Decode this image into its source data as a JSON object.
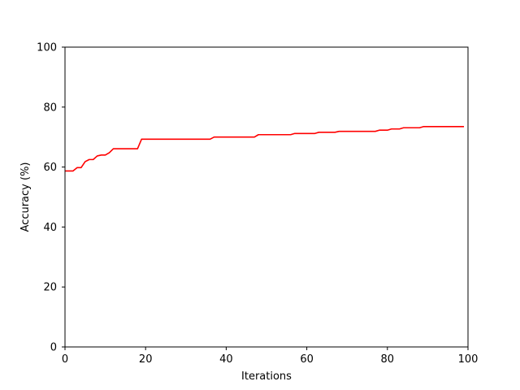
{
  "chart_data": {
    "type": "line",
    "title": "",
    "xlabel": "Iterations",
    "ylabel": "Accuracy (%)",
    "xlim": [
      0,
      100
    ],
    "ylim": [
      0,
      100
    ],
    "xticks": [
      0,
      20,
      40,
      60,
      80,
      100
    ],
    "yticks": [
      0,
      20,
      40,
      60,
      80,
      100
    ],
    "grid": false,
    "series": [
      {
        "color": "#ff0000",
        "x": [
          0,
          1,
          2,
          3,
          4,
          5,
          6,
          7,
          8,
          9,
          10,
          11,
          12,
          13,
          14,
          15,
          16,
          17,
          18,
          19,
          20,
          21,
          22,
          23,
          24,
          25,
          26,
          27,
          28,
          29,
          30,
          31,
          32,
          33,
          34,
          35,
          36,
          37,
          38,
          39,
          40,
          41,
          42,
          43,
          44,
          45,
          46,
          47,
          48,
          49,
          50,
          51,
          52,
          53,
          54,
          55,
          56,
          57,
          58,
          59,
          60,
          61,
          62,
          63,
          64,
          65,
          66,
          67,
          68,
          69,
          70,
          71,
          72,
          73,
          74,
          75,
          76,
          77,
          78,
          79,
          80,
          81,
          82,
          83,
          84,
          85,
          86,
          87,
          88,
          89,
          90,
          91,
          92,
          93,
          94,
          95,
          96,
          97,
          98,
          99
        ],
        "y": [
          58.7,
          58.7,
          58.7,
          59.8,
          59.8,
          61.8,
          62.5,
          62.5,
          63.7,
          64.0,
          64.0,
          64.8,
          66.1,
          66.1,
          66.1,
          66.1,
          66.1,
          66.1,
          66.1,
          69.3,
          69.3,
          69.3,
          69.3,
          69.3,
          69.3,
          69.3,
          69.3,
          69.3,
          69.3,
          69.3,
          69.3,
          69.3,
          69.3,
          69.3,
          69.3,
          69.3,
          69.3,
          70.0,
          70.0,
          70.0,
          70.0,
          70.0,
          70.0,
          70.0,
          70.0,
          70.0,
          70.0,
          70.0,
          70.8,
          70.8,
          70.8,
          70.8,
          70.8,
          70.8,
          70.8,
          70.8,
          70.8,
          71.2,
          71.2,
          71.2,
          71.2,
          71.2,
          71.2,
          71.6,
          71.6,
          71.6,
          71.6,
          71.6,
          71.9,
          71.9,
          71.9,
          71.9,
          71.9,
          71.9,
          71.9,
          71.9,
          71.9,
          71.9,
          72.3,
          72.3,
          72.3,
          72.7,
          72.7,
          72.7,
          73.1,
          73.1,
          73.1,
          73.1,
          73.1,
          73.5,
          73.5,
          73.5,
          73.5,
          73.5,
          73.5,
          73.5,
          73.5,
          73.5,
          73.5,
          73.5
        ]
      }
    ]
  }
}
